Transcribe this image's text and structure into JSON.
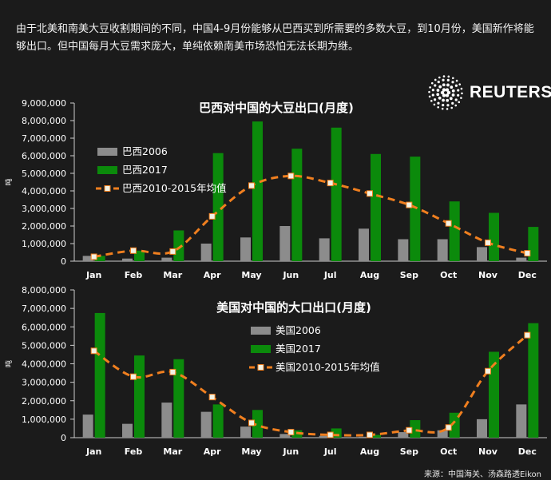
{
  "intro_text": "由于北美和南美大豆收割期间的不同，中国4-9月份能够从巴西买到所需要的多数大豆，到10月份，美国新作将能够出口。但中国每月大豆需求庞大，单纯依赖南美市场恐怕无法长期为继。",
  "brand": {
    "name": "REUTERS",
    "icon": "reuters-dot-logo-icon"
  },
  "source_note": "来源：中国海关、汤森路透Eikon",
  "colors": {
    "background": "#1b1b1b",
    "series_2006": "#8c8c8c",
    "series_2017": "#0b8a0b",
    "series_avg": "#f07f1f",
    "marker_fill": "#f2f2e4",
    "axis": "#cccccc",
    "text": "#ffffff"
  },
  "chart_data": [
    {
      "type": "bar",
      "title": "巴西对中国的大豆出口(月度)",
      "ylabel": "吨",
      "xlabel": "",
      "ylim": [
        0,
        9000000
      ],
      "yticks": [
        "0",
        "1,000,000",
        "2,000,000",
        "3,000,000",
        "4,000,000",
        "5,000,000",
        "6,000,000",
        "7,000,000",
        "8,000,000",
        "9,000,000"
      ],
      "categories": [
        "Jan",
        "Feb",
        "Mar",
        "Apr",
        "May",
        "Jun",
        "Jul",
        "Aug",
        "Sep",
        "Oct",
        "Nov",
        "Dec"
      ],
      "legend_position": "top-left",
      "grid": false,
      "series": [
        {
          "name": "巴西2006",
          "kind": "bar",
          "color": "#8c8c8c",
          "values": [
            300000,
            150000,
            200000,
            1000000,
            1350000,
            2000000,
            1300000,
            1850000,
            1250000,
            1250000,
            800000,
            200000
          ]
        },
        {
          "name": "巴西2017",
          "kind": "bar",
          "color": "#0b8a0b",
          "values": [
            300000,
            600000,
            1750000,
            6150000,
            7950000,
            6400000,
            7600000,
            6100000,
            5950000,
            3400000,
            2750000,
            1950000
          ]
        },
        {
          "name": "巴西2010-2015年均值",
          "kind": "line",
          "color": "#f07f1f",
          "values": [
            250000,
            600000,
            550000,
            2550000,
            4300000,
            4850000,
            4450000,
            3850000,
            3200000,
            2150000,
            1050000,
            450000
          ]
        }
      ]
    },
    {
      "type": "bar",
      "title": "美国对中国的大口出口(月度)",
      "ylabel": "吨",
      "xlabel": "",
      "ylim": [
        0,
        8000000
      ],
      "yticks": [
        "0",
        "1,000,000",
        "2,000,000",
        "3,000,000",
        "4,000,000",
        "5,000,000",
        "6,000,000",
        "7,000,000",
        "8,000,000"
      ],
      "categories": [
        "Jan",
        "Feb",
        "Mar",
        "Apr",
        "May",
        "Jun",
        "Jul",
        "Aug",
        "Sep",
        "Oct",
        "Nov",
        "Dec"
      ],
      "legend_position": "top-center",
      "grid": false,
      "series": [
        {
          "name": "美国2006",
          "kind": "bar",
          "color": "#8c8c8c",
          "values": [
            1250000,
            750000,
            1900000,
            1400000,
            600000,
            200000,
            100000,
            50000,
            300000,
            400000,
            1000000,
            1800000
          ]
        },
        {
          "name": "美国2017",
          "kind": "bar",
          "color": "#0b8a0b",
          "values": [
            6750000,
            4450000,
            4250000,
            1800000,
            1500000,
            400000,
            500000,
            150000,
            950000,
            1350000,
            4650000,
            6200000
          ]
        },
        {
          "name": "美国2010-2015年均值",
          "kind": "line",
          "color": "#f07f1f",
          "values": [
            4700000,
            3300000,
            3550000,
            2200000,
            800000,
            300000,
            150000,
            150000,
            400000,
            550000,
            3600000,
            5550000
          ]
        }
      ]
    }
  ]
}
